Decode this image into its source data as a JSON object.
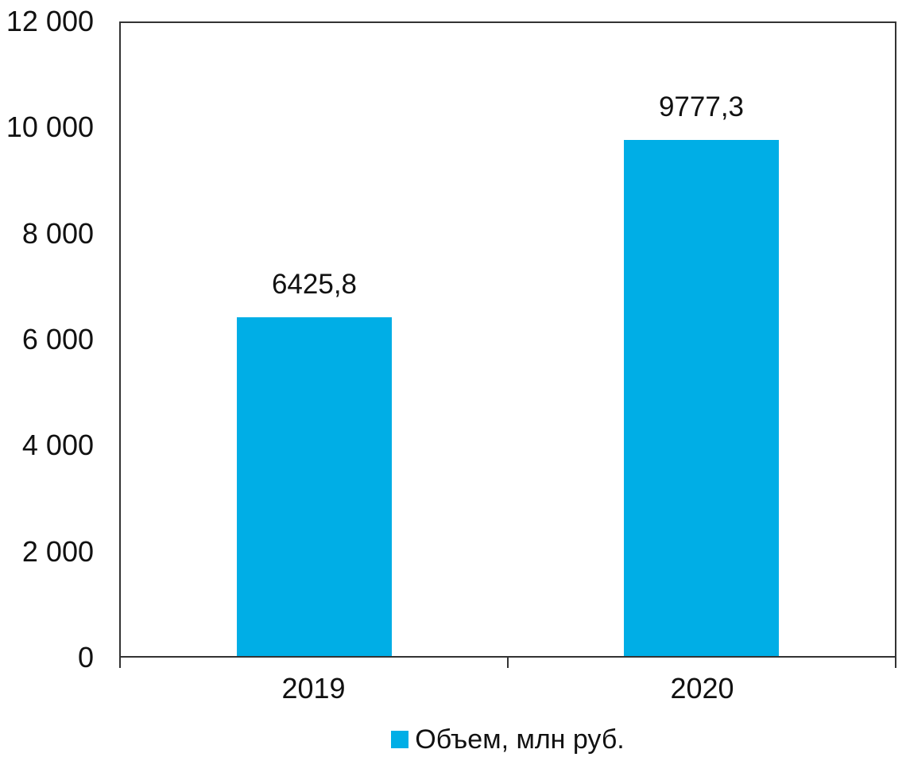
{
  "chart_data": {
    "type": "bar",
    "categories": [
      "2019",
      "2020"
    ],
    "series": [
      {
        "name": "Объем, млн руб.",
        "values": [
          6425.8,
          9777.3
        ],
        "color": "#00AEE6"
      }
    ],
    "value_labels": [
      "6425,8",
      "9777,3"
    ],
    "ylim": [
      0,
      12000
    ],
    "ytick_step": 2000,
    "ytick_labels": [
      "0",
      "2 000",
      "4 000",
      "6 000",
      "8 000",
      "10 000",
      "12 000"
    ],
    "grid": false,
    "legend_position": "bottom",
    "legend_label": "Объем, млн руб."
  },
  "colors": {
    "bar": "#00AEE6",
    "axis": "#333333",
    "text": "#111111",
    "background": "#ffffff"
  }
}
